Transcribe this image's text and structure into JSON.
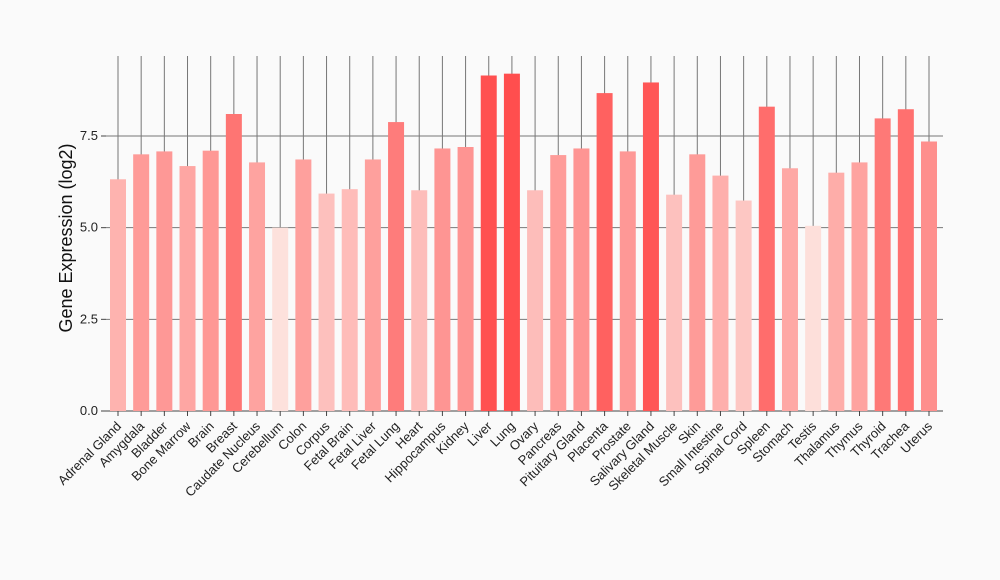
{
  "chart_data": {
    "type": "bar",
    "title": "",
    "xlabel": "",
    "ylabel": "Gene Expression (log2)",
    "ylim": [
      0,
      10
    ],
    "yticks": [
      0.0,
      2.5,
      5.0,
      7.5
    ],
    "ytick_labels": [
      "0.0",
      "2.5",
      "5.0",
      "7.5"
    ],
    "grid": true,
    "color_scale": {
      "low": "#fde1dc",
      "high": "#ff4e4e",
      "min_value": 5.0,
      "max_value": 9.2
    },
    "categories": [
      "Adrenal Gland",
      "Amygdala",
      "Bladder",
      "Bone Marrow",
      "Brain",
      "Breast",
      "Caudate Nucleus",
      "Cerebellum",
      "Colon",
      "Corpus",
      "Fetal Brain",
      "Fetal Liver",
      "Fetal Lung",
      "Heart",
      "Hippocampus",
      "Kidney",
      "Liver",
      "Lung",
      "Ovary",
      "Pancreas",
      "Pituitary Gland",
      "Placenta",
      "Prostate",
      "Salivary Gland",
      "Skeletal Muscle",
      "Skin",
      "Small Intestine",
      "Spinal Cord",
      "Spleen",
      "Stomach",
      "Testis",
      "Thalamus",
      "Thymus",
      "Thyroid",
      "Trachea",
      "Uterus"
    ],
    "values": [
      6.32,
      7.0,
      7.08,
      6.68,
      7.1,
      8.1,
      6.78,
      5.0,
      6.86,
      5.93,
      6.05,
      6.86,
      7.88,
      6.02,
      7.16,
      7.2,
      9.15,
      9.2,
      6.02,
      6.98,
      7.16,
      8.67,
      7.08,
      8.96,
      5.9,
      7.0,
      6.42,
      5.74,
      8.3,
      6.62,
      5.05,
      6.5,
      6.78,
      7.98,
      8.23,
      7.35
    ]
  }
}
